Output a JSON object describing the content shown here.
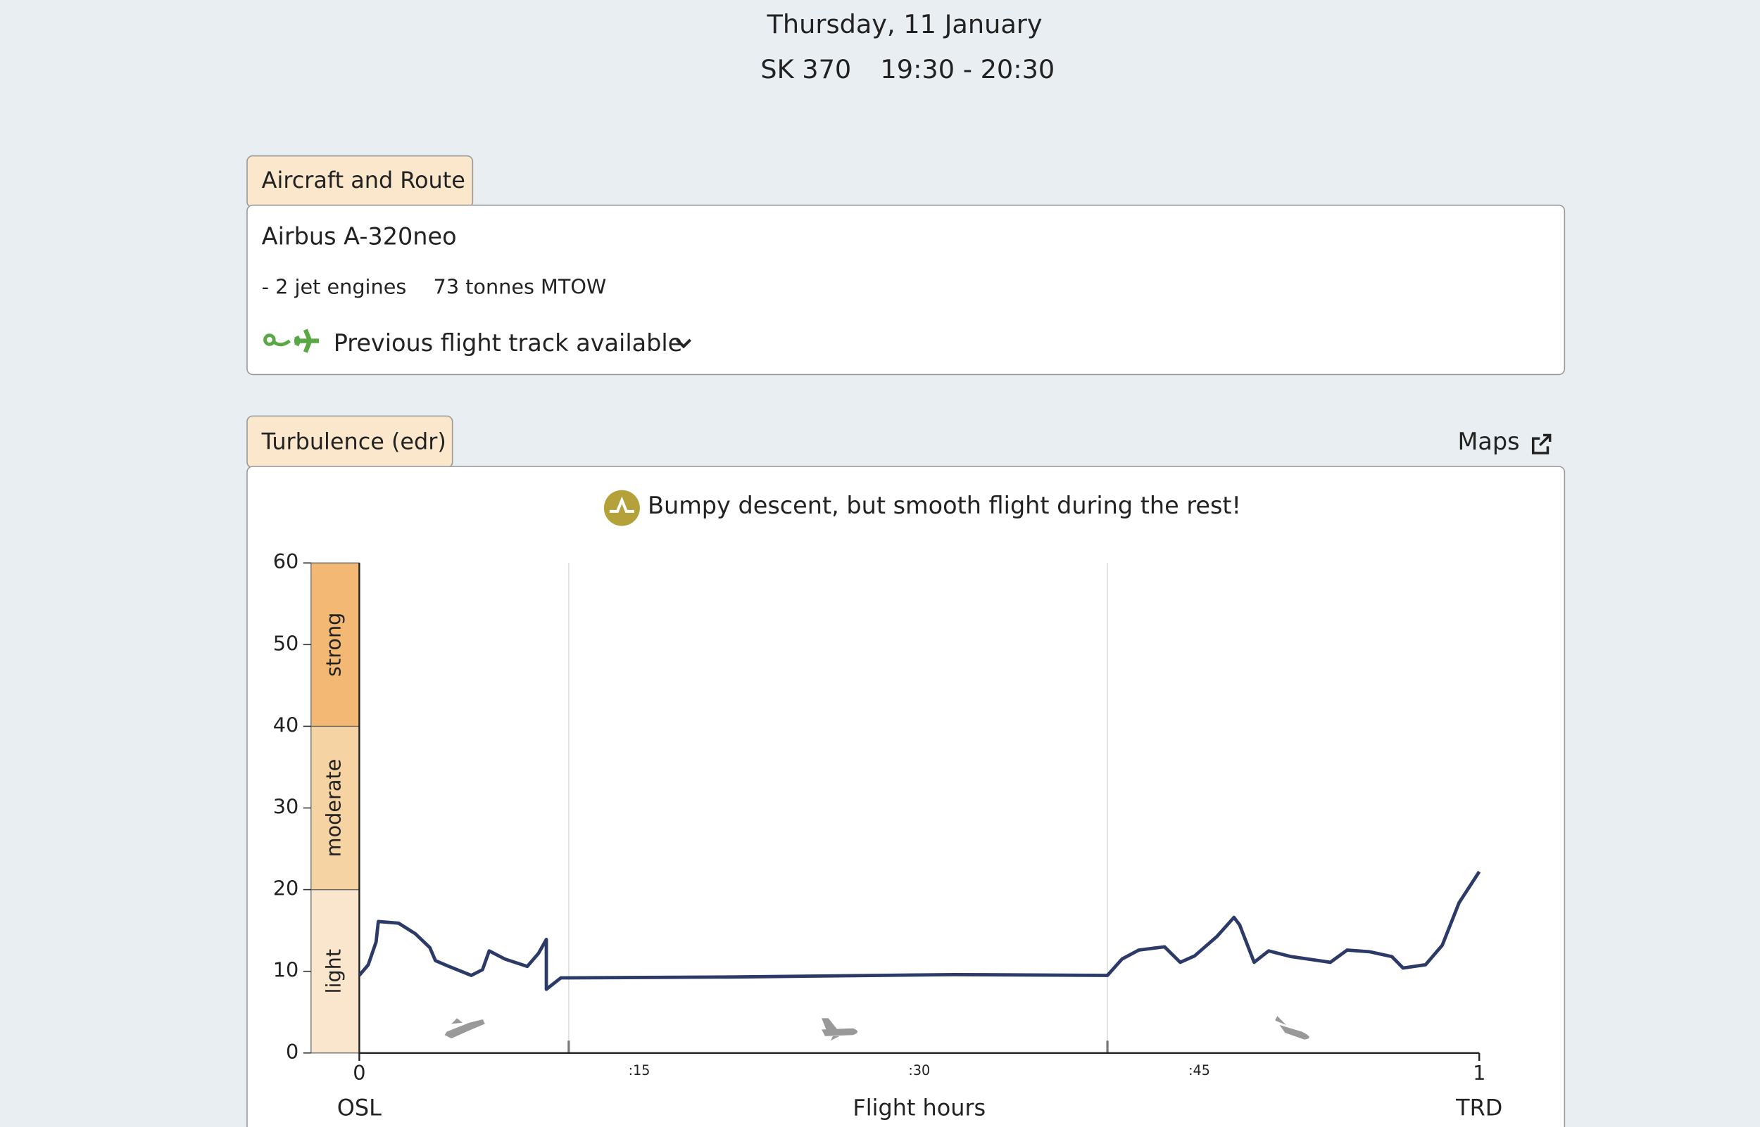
{
  "header": {
    "date": "Thursday, 11 January",
    "flight": "SK 370",
    "time": "19:30 - 20:30"
  },
  "aircraft": {
    "tab": "Aircraft and Route",
    "model": "Airbus A-320neo",
    "engines": "- 2 jet engines",
    "weight": "73 tonnes MTOW",
    "track": "Previous flight track available"
  },
  "turbulence": {
    "tab": "Turbulence (edr)",
    "link": "Maps",
    "summary": "Bumpy descent, but smooth flight during the rest!"
  },
  "chart_data": {
    "type": "line",
    "xlabel": "Flight hours",
    "origin": "OSL",
    "destination": "TRD",
    "xlim": [
      0,
      1
    ],
    "xticks": [
      0,
      {
        "value": 0.25,
        "label": ":15"
      },
      {
        "value": 0.5,
        "label": ":30"
      },
      {
        "value": 0.75,
        "label": ":45"
      },
      1
    ],
    "ylim": [
      0,
      60
    ],
    "yticks": [
      0,
      10,
      20,
      30,
      40,
      50,
      60
    ],
    "bands": [
      {
        "label": "light",
        "from": 0,
        "to": 20,
        "color": "#f9e6cc"
      },
      {
        "label": "moderate",
        "from": 20,
        "to": 40,
        "color": "#f6d3a2"
      },
      {
        "label": "strong",
        "from": 40,
        "to": 60,
        "color": "#f3b873"
      }
    ],
    "phase_boundaries": [
      0.187,
      0.668
    ],
    "series": [
      {
        "color": "#2b3a67",
        "x": [
          0,
          0.008,
          0.015,
          0.017,
          0.035,
          0.05,
          0.063,
          0.068,
          0.08,
          0.1,
          0.11,
          0.116,
          0.13,
          0.15,
          0.16,
          0.167,
          0.167,
          0.18,
          0.187,
          0.33,
          0.531,
          0.668,
          0.681,
          0.696,
          0.719,
          0.733,
          0.746,
          0.766,
          0.781,
          0.786,
          0.799,
          0.812,
          0.832,
          0.867,
          0.882,
          0.902,
          0.922,
          0.932,
          0.952,
          0.967,
          0.982,
          1.0
        ],
        "values": [
          9.5,
          10.8,
          13.6,
          16.1,
          15.9,
          14.6,
          12.9,
          11.3,
          10.6,
          9.5,
          10.2,
          12.5,
          11.5,
          10.6,
          12.2,
          13.9,
          7.8,
          9.2,
          9.2,
          9.3,
          9.6,
          9.5,
          11.5,
          12.6,
          13.0,
          11.1,
          11.9,
          14.3,
          16.6,
          15.7,
          11.1,
          12.5,
          11.8,
          11.1,
          12.6,
          12.4,
          11.8,
          10.4,
          10.8,
          13.2,
          18.4,
          22.2
        ]
      }
    ]
  }
}
